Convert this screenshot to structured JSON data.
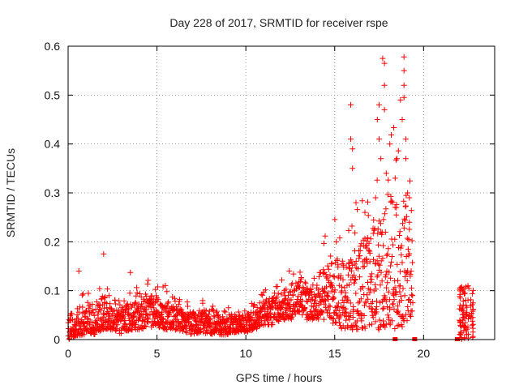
{
  "chart_data": {
    "type": "scatter",
    "title": "Day 228 of 2017, SRMTID for receiver rspe",
    "xlabel": "GPS time / hours",
    "ylabel": "SRMTID / TECUs",
    "xlim": [
      0,
      24
    ],
    "ylim": [
      0,
      0.6
    ],
    "x_ticks": [
      0,
      5,
      10,
      15,
      20
    ],
    "y_ticks": [
      0,
      0.1,
      0.2,
      0.3,
      0.4,
      0.5,
      0.6
    ],
    "y_tick_labels": [
      "0",
      "0.1",
      "0.2",
      "0.3",
      "0.4",
      "0.5",
      "0.6"
    ],
    "grid": true,
    "marker": "+",
    "series_color": "#ff0000",
    "envelope": {
      "note": "approximate band of the dense point cloud (hours, TECU)",
      "x": [
        0.0,
        0.5,
        1.0,
        1.5,
        2.0,
        2.5,
        3.0,
        3.5,
        4.0,
        4.5,
        5.0,
        5.5,
        6.0,
        6.5,
        7.0,
        7.5,
        8.0,
        8.5,
        9.0,
        9.5,
        10.0,
        10.5,
        11.0,
        11.5,
        12.0,
        12.5,
        13.0,
        13.5,
        14.0,
        14.5,
        15.0,
        15.5,
        16.0,
        16.5,
        17.0,
        17.5,
        18.0,
        18.5,
        19.0,
        19.4
      ],
      "low": [
        0.0,
        0.005,
        0.01,
        0.01,
        0.02,
        0.02,
        0.01,
        0.02,
        0.02,
        0.025,
        0.025,
        0.02,
        0.02,
        0.015,
        0.01,
        0.015,
        0.01,
        0.01,
        0.01,
        0.015,
        0.015,
        0.02,
        0.03,
        0.03,
        0.04,
        0.04,
        0.05,
        0.04,
        0.04,
        0.04,
        0.03,
        0.02,
        0.02,
        0.02,
        0.02,
        0.02,
        0.02,
        0.02,
        0.03,
        0.05
      ],
      "high": [
        0.05,
        0.06,
        0.08,
        0.06,
        0.09,
        0.07,
        0.06,
        0.08,
        0.08,
        0.09,
        0.09,
        0.08,
        0.07,
        0.06,
        0.06,
        0.06,
        0.05,
        0.05,
        0.05,
        0.05,
        0.05,
        0.06,
        0.08,
        0.09,
        0.1,
        0.11,
        0.12,
        0.12,
        0.12,
        0.16,
        0.18,
        0.16,
        0.18,
        0.2,
        0.22,
        0.25,
        0.3,
        0.3,
        0.28,
        0.2
      ]
    },
    "late_cluster": {
      "x_range": [
        22.0,
        22.8
      ],
      "y_range": [
        0.0,
        0.11
      ]
    },
    "notable_points": [
      {
        "x": 2.0,
        "y": 0.175
      },
      {
        "x": 3.5,
        "y": 0.137
      },
      {
        "x": 0.6,
        "y": 0.14
      },
      {
        "x": 15.9,
        "y": 0.48
      },
      {
        "x": 15.9,
        "y": 0.41
      },
      {
        "x": 16.0,
        "y": 0.39
      },
      {
        "x": 16.0,
        "y": 0.35
      },
      {
        "x": 16.2,
        "y": 0.28
      },
      {
        "x": 16.7,
        "y": 0.26
      },
      {
        "x": 17.3,
        "y": 0.29
      },
      {
        "x": 17.4,
        "y": 0.45
      },
      {
        "x": 17.5,
        "y": 0.48
      },
      {
        "x": 17.5,
        "y": 0.41
      },
      {
        "x": 17.6,
        "y": 0.37
      },
      {
        "x": 17.7,
        "y": 0.575
      },
      {
        "x": 17.8,
        "y": 0.565
      },
      {
        "x": 17.8,
        "y": 0.52
      },
      {
        "x": 17.8,
        "y": 0.47
      },
      {
        "x": 17.9,
        "y": 0.34
      },
      {
        "x": 18.1,
        "y": 0.4
      },
      {
        "x": 18.4,
        "y": 0.33
      },
      {
        "x": 18.5,
        "y": 0.37
      },
      {
        "x": 18.7,
        "y": 0.49
      },
      {
        "x": 18.8,
        "y": 0.45
      },
      {
        "x": 18.9,
        "y": 0.578
      },
      {
        "x": 18.9,
        "y": 0.55
      },
      {
        "x": 18.9,
        "y": 0.52
      },
      {
        "x": 18.9,
        "y": 0.495
      },
      {
        "x": 19.0,
        "y": 0.41
      },
      {
        "x": 19.0,
        "y": 0.37
      },
      {
        "x": 19.1,
        "y": 0.3
      },
      {
        "x": 19.2,
        "y": 0.29
      },
      {
        "x": 19.2,
        "y": 0.24
      },
      {
        "x": 19.3,
        "y": 0.14
      },
      {
        "x": 22.5,
        "y": 0.11
      }
    ],
    "zero_markers": [
      {
        "x": 18.4,
        "y": 0
      },
      {
        "x": 19.5,
        "y": 0
      },
      {
        "x": 21.9,
        "y": 0
      }
    ]
  }
}
